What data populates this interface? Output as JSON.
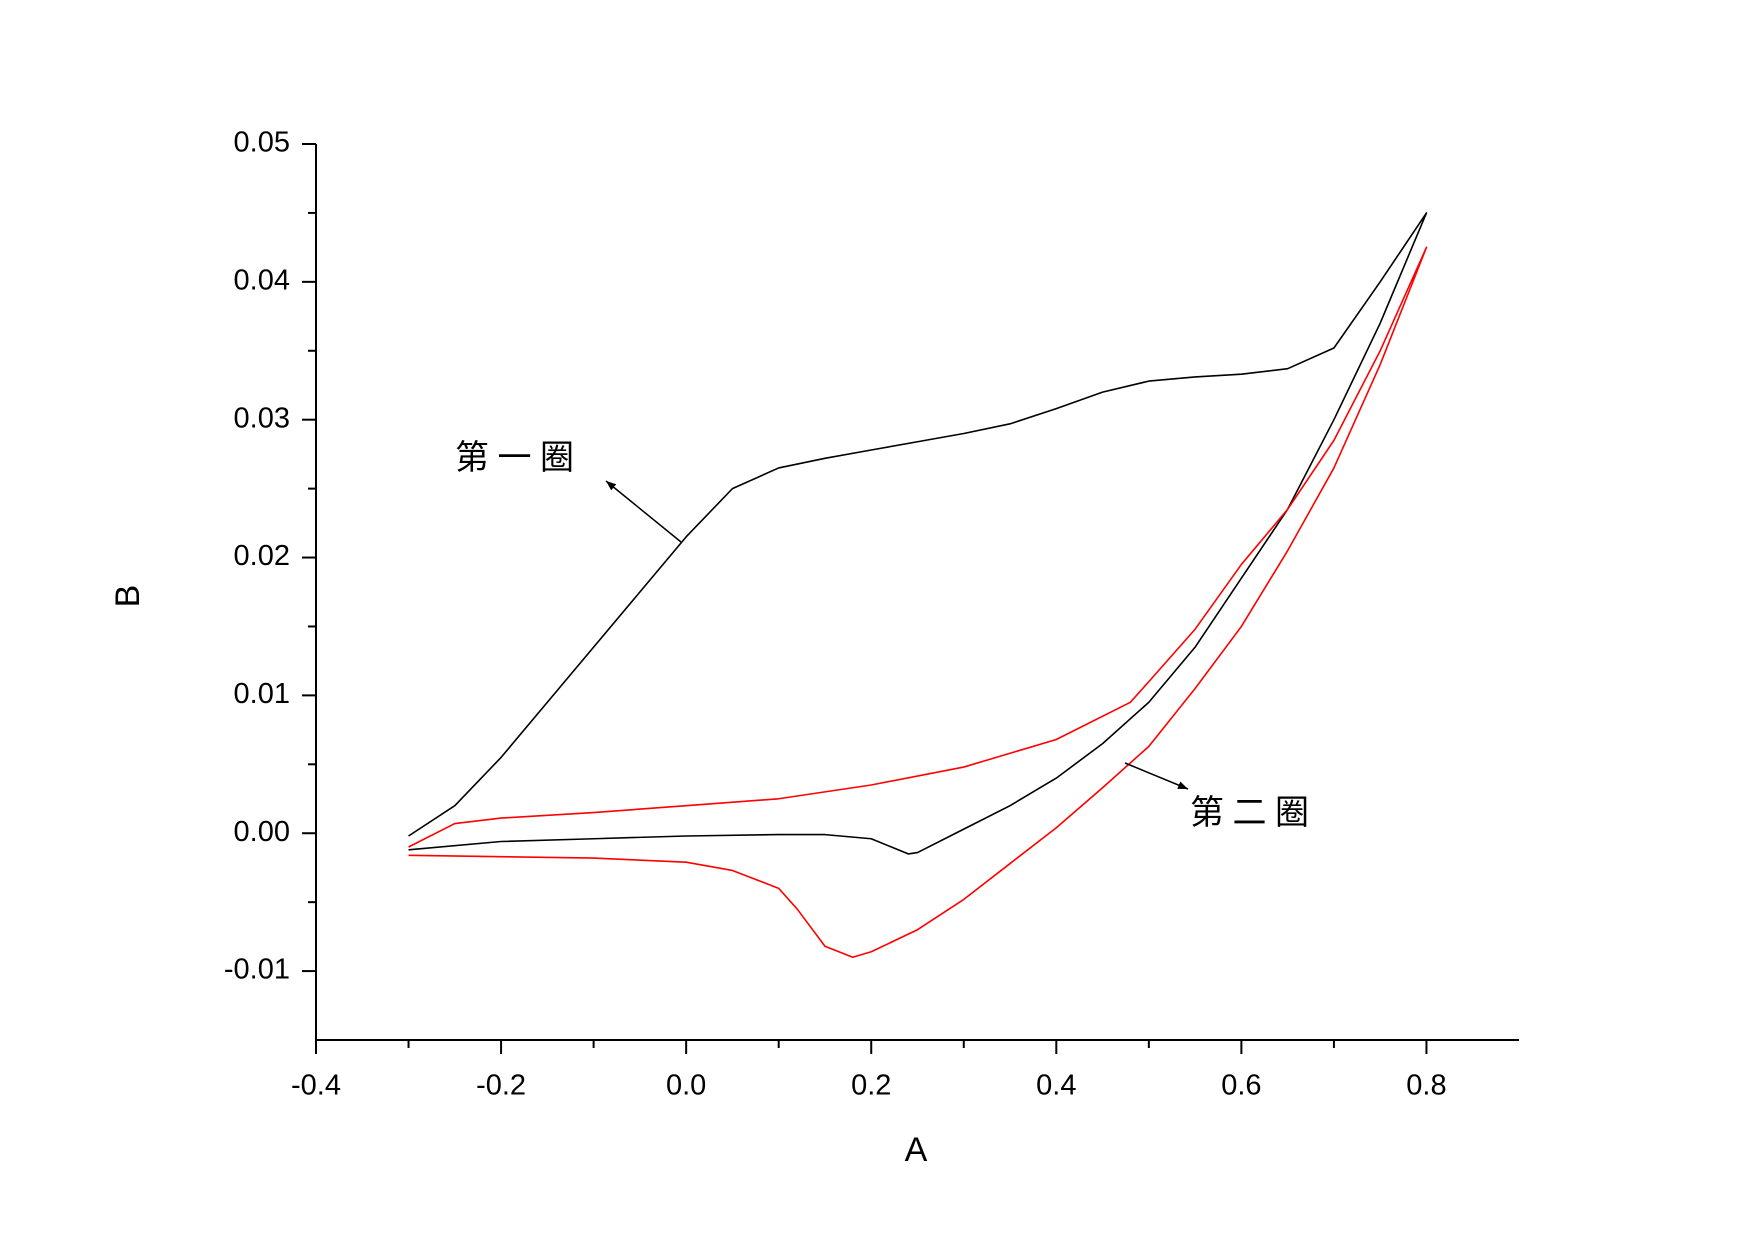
{
  "chart_data": {
    "type": "line",
    "xlabel": "A",
    "ylabel": "B",
    "xlim": [
      -0.4,
      0.9
    ],
    "ylim": [
      -0.015,
      0.05
    ],
    "xticks": [
      -0.4,
      -0.2,
      {
        "value": 0.0,
        "label": "0.0"
      },
      0.2,
      0.4,
      0.6,
      0.8
    ],
    "yticks": [
      -0.01,
      {
        "value": 0.0,
        "label": "0.00"
      },
      0.01,
      0.02,
      0.03,
      0.04,
      0.05
    ],
    "grid": false,
    "series": [
      {
        "color": "#000000",
        "x": [
          -0.3,
          -0.25,
          -0.2,
          -0.15,
          -0.1,
          -0.05,
          0.0,
          0.05,
          0.1,
          0.15,
          0.2,
          0.25,
          0.3,
          0.35,
          0.4,
          0.45,
          0.5,
          0.55,
          0.6,
          0.65,
          0.7,
          0.75,
          0.8,
          0.75,
          0.7,
          0.65,
          0.6,
          0.55,
          0.5,
          0.45,
          0.4,
          0.35,
          0.3,
          0.25,
          0.24,
          0.2,
          0.15,
          0.1,
          0.0,
          -0.1,
          -0.2,
          -0.3
        ],
        "y": [
          -0.0002,
          0.002,
          0.0055,
          0.0095,
          0.0135,
          0.0175,
          0.0215,
          0.025,
          0.0265,
          0.0272,
          0.0278,
          0.0284,
          0.029,
          0.0297,
          0.0308,
          0.032,
          0.0328,
          0.0331,
          0.0333,
          0.0337,
          0.0352,
          0.04,
          0.045,
          0.037,
          0.03,
          0.0235,
          0.0185,
          0.0135,
          0.0095,
          0.0065,
          0.004,
          0.002,
          0.0003,
          -0.0014,
          -0.0015,
          -0.0004,
          -0.0001,
          -0.0001,
          -0.0002,
          -0.0004,
          -0.0006,
          -0.0012
        ]
      },
      {
        "color": "#ff0000",
        "x": [
          -0.3,
          -0.25,
          -0.2,
          -0.1,
          0.0,
          0.1,
          0.2,
          0.3,
          0.4,
          0.48,
          0.5,
          0.55,
          0.6,
          0.65,
          0.7,
          0.75,
          0.8,
          0.75,
          0.7,
          0.65,
          0.6,
          0.55,
          0.5,
          0.45,
          0.4,
          0.35,
          0.3,
          0.25,
          0.2,
          0.18,
          0.15,
          0.12,
          0.1,
          0.05,
          0.0,
          -0.1,
          -0.2,
          -0.3
        ],
        "y": [
          -0.001,
          0.0007,
          0.0011,
          0.0015,
          0.002,
          0.0025,
          0.0035,
          0.0048,
          0.0068,
          0.0095,
          0.011,
          0.0148,
          0.0195,
          0.0235,
          0.0285,
          0.035,
          0.0425,
          0.034,
          0.0265,
          0.0205,
          0.015,
          0.0105,
          0.0063,
          0.0033,
          0.0004,
          -0.0022,
          -0.0048,
          -0.007,
          -0.0086,
          -0.009,
          -0.0082,
          -0.0055,
          -0.004,
          -0.0027,
          -0.0021,
          -0.0018,
          -0.0017,
          -0.0016
        ]
      }
    ],
    "annotations": [
      {
        "text": "第 一 圈"
      },
      {
        "text": "第 二 圈"
      }
    ]
  }
}
